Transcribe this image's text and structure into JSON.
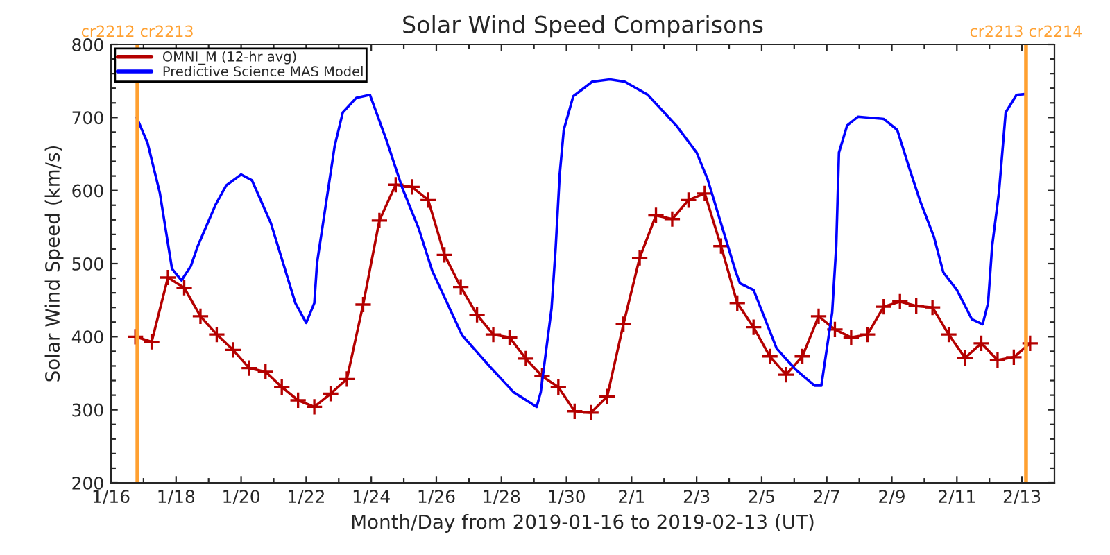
{
  "chart_data": {
    "type": "line",
    "title": "Solar Wind Speed Comparisons",
    "xlabel": "Month/Day from 2019-01-16 to 2019-02-13 (UT)",
    "ylabel": "Solar Wind Speed (km/s)",
    "xlim": [
      "2019-01-16",
      "2019-02-14"
    ],
    "xticks": [
      {
        "value": "2019-01-16",
        "label": "1/16"
      },
      {
        "value": "2019-01-17",
        "label": null
      },
      {
        "value": "2019-01-18",
        "label": "1/18"
      },
      {
        "value": "2019-01-19",
        "label": null
      },
      {
        "value": "2019-01-20",
        "label": "1/20"
      },
      {
        "value": "2019-01-21",
        "label": null
      },
      {
        "value": "2019-01-22",
        "label": "1/22"
      },
      {
        "value": "2019-01-23",
        "label": null
      },
      {
        "value": "2019-01-24",
        "label": "1/24"
      },
      {
        "value": "2019-01-25",
        "label": null
      },
      {
        "value": "2019-01-26",
        "label": "1/26"
      },
      {
        "value": "2019-01-27",
        "label": null
      },
      {
        "value": "2019-01-28",
        "label": "1/28"
      },
      {
        "value": "2019-01-29",
        "label": null
      },
      {
        "value": "2019-01-30",
        "label": "1/30"
      },
      {
        "value": "2019-01-31",
        "label": null
      },
      {
        "value": "2019-02-01",
        "label": "2/1"
      },
      {
        "value": "2019-02-02",
        "label": null
      },
      {
        "value": "2019-02-03",
        "label": "2/3"
      },
      {
        "value": "2019-02-04",
        "label": null
      },
      {
        "value": "2019-02-05",
        "label": "2/5"
      },
      {
        "value": "2019-02-06",
        "label": null
      },
      {
        "value": "2019-02-07",
        "label": "2/7"
      },
      {
        "value": "2019-02-08",
        "label": null
      },
      {
        "value": "2019-02-09",
        "label": "2/9"
      },
      {
        "value": "2019-02-10",
        "label": null
      },
      {
        "value": "2019-02-11",
        "label": "2/11"
      },
      {
        "value": "2019-02-12",
        "label": null
      },
      {
        "value": "2019-02-13",
        "label": "2/13"
      }
    ],
    "ylim": [
      200,
      800
    ],
    "yticks": [
      200,
      {
        "value": 220,
        "label": null
      },
      {
        "value": 240,
        "label": null
      },
      {
        "value": 260,
        "label": null
      },
      {
        "value": 280,
        "label": null
      },
      300,
      {
        "value": 320,
        "label": null
      },
      {
        "value": 340,
        "label": null
      },
      {
        "value": 360,
        "label": null
      },
      {
        "value": 380,
        "label": null
      },
      400,
      {
        "value": 420,
        "label": null
      },
      {
        "value": 440,
        "label": null
      },
      {
        "value": 460,
        "label": null
      },
      {
        "value": 480,
        "label": null
      },
      500,
      {
        "value": 520,
        "label": null
      },
      {
        "value": 540,
        "label": null
      },
      {
        "value": 560,
        "label": null
      },
      {
        "value": 580,
        "label": null
      },
      600,
      {
        "value": 620,
        "label": null
      },
      {
        "value": 640,
        "label": null
      },
      {
        "value": 660,
        "label": null
      },
      {
        "value": 680,
        "label": null
      },
      700,
      {
        "value": 720,
        "label": null
      },
      {
        "value": 740,
        "label": null
      },
      {
        "value": 760,
        "label": null
      },
      {
        "value": 780,
        "label": null
      },
      800
    ],
    "grid": false,
    "legend": "top left",
    "ref_lines": [
      {
        "axis": "x",
        "value": "2019-01-16T19:30",
        "label": "cr2212 cr2213",
        "color": "#ffa030"
      },
      {
        "axis": "x",
        "value": "2019-02-13T03:00",
        "label": "cr2213 cr2214",
        "color": "#ffa030"
      }
    ],
    "series": [
      {
        "name": "OMNI_M (12-hr avg)",
        "color": "#b40000",
        "marker": "cross",
        "x": [
          "2019-01-16T18:00",
          "2019-01-17T06:00",
          "2019-01-17T18:00",
          "2019-01-18T06:00",
          "2019-01-18T18:00",
          "2019-01-19T06:00",
          "2019-01-19T18:00",
          "2019-01-20T06:00",
          "2019-01-20T18:00",
          "2019-01-21T06:00",
          "2019-01-21T18:00",
          "2019-01-22T06:00",
          "2019-01-22T18:00",
          "2019-01-23T06:00",
          "2019-01-23T18:00",
          "2019-01-24T06:00",
          "2019-01-24T18:00",
          "2019-01-25T06:00",
          "2019-01-25T18:00",
          "2019-01-26T06:00",
          "2019-01-26T18:00",
          "2019-01-27T06:00",
          "2019-01-27T18:00",
          "2019-01-28T06:00",
          "2019-01-28T18:00",
          "2019-01-29T06:00",
          "2019-01-29T18:00",
          "2019-01-30T06:00",
          "2019-01-30T18:00",
          "2019-01-31T06:00",
          "2019-01-31T18:00",
          "2019-02-01T06:00",
          "2019-02-01T18:00",
          "2019-02-02T06:00",
          "2019-02-02T18:00",
          "2019-02-03T06:00",
          "2019-02-03T18:00",
          "2019-02-04T06:00",
          "2019-02-04T18:00",
          "2019-02-05T06:00",
          "2019-02-05T18:00",
          "2019-02-06T06:00",
          "2019-02-06T18:00",
          "2019-02-07T06:00",
          "2019-02-07T18:00",
          "2019-02-08T06:00",
          "2019-02-08T18:00",
          "2019-02-09T06:00",
          "2019-02-09T18:00",
          "2019-02-10T06:00",
          "2019-02-10T18:00",
          "2019-02-11T06:00",
          "2019-02-11T18:00",
          "2019-02-12T06:00",
          "2019-02-12T18:00",
          "2019-02-13T06:00"
        ],
        "values": [
          400,
          393,
          481,
          467,
          428,
          403,
          382,
          357,
          352,
          331,
          313,
          304,
          322,
          342,
          444,
          559,
          608,
          605,
          587,
          512,
          468,
          430,
          403,
          399,
          370,
          346,
          331,
          298,
          296,
          318,
          417,
          508,
          566,
          561,
          587,
          596,
          524,
          446,
          413,
          373,
          348,
          373,
          428,
          410,
          399,
          403,
          441,
          448,
          442,
          440,
          403,
          371,
          391,
          368,
          372,
          391
        ]
      },
      {
        "name": "Predictive Science MAS Model",
        "color": "#0000ff",
        "marker": "none",
        "x": [
          "2019-01-16T19:00",
          "2019-01-17T03:00",
          "2019-01-17T12:00",
          "2019-01-17T21:00",
          "2019-01-18T04:00",
          "2019-01-18T11:00",
          "2019-01-18T16:00",
          "2019-01-19T05:00",
          "2019-01-19T13:00",
          "2019-01-20T00:00",
          "2019-01-20T08:00",
          "2019-01-20T22:00",
          "2019-01-21T16:00",
          "2019-01-22T00:00",
          "2019-01-22T06:00",
          "2019-01-22T08:00",
          "2019-01-22T21:00",
          "2019-01-23T03:00",
          "2019-01-23T13:00",
          "2019-01-23T23:00",
          "2019-01-24T11:00",
          "2019-01-24T23:00",
          "2019-01-25T11:00",
          "2019-01-25T21:00",
          "2019-01-26T19:00",
          "2019-01-27T15:00",
          "2019-01-28T09:00",
          "2019-01-29T02:00",
          "2019-01-29T05:00",
          "2019-01-29T13:00",
          "2019-01-29T16:00",
          "2019-01-29T19:00",
          "2019-01-29T22:00",
          "2019-01-30T05:00",
          "2019-01-30T19:00",
          "2019-01-31T08:00",
          "2019-01-31T19:00",
          "2019-02-01T12:00",
          "2019-02-02T09:00",
          "2019-02-03T00:00",
          "2019-02-03T08:00",
          "2019-02-04T05:00",
          "2019-02-04T08:00",
          "2019-02-04T18:00",
          "2019-02-05T11:00",
          "2019-02-06T01:00",
          "2019-02-06T15:00",
          "2019-02-06T20:00",
          "2019-02-07T04:00",
          "2019-02-07T07:00",
          "2019-02-07T09:00",
          "2019-02-07T15:00",
          "2019-02-07T23:00",
          "2019-02-08T18:00",
          "2019-02-09T04:00",
          "2019-02-09T13:00",
          "2019-02-09T21:00",
          "2019-02-10T07:00",
          "2019-02-10T14:00",
          "2019-02-11T00:00",
          "2019-02-11T11:00",
          "2019-02-11T19:00",
          "2019-02-11T23:00",
          "2019-02-12T02:00",
          "2019-02-12T07:00",
          "2019-02-12T12:00",
          "2019-02-12T20:00",
          "2019-02-13T02:00"
        ],
        "values": [
          700,
          665,
          597,
          493,
          477,
          497,
          524,
          580,
          607,
          622,
          614,
          555,
          446,
          419,
          446,
          501,
          661,
          707,
          727,
          731,
          670,
          603,
          548,
          490,
          402,
          360,
          324,
          304,
          324,
          439,
          521,
          622,
          683,
          729,
          749,
          752,
          749,
          731,
          689,
          652,
          616,
          488,
          473,
          464,
          384,
          355,
          333,
          333,
          433,
          524,
          652,
          689,
          701,
          698,
          683,
          630,
          585,
          537,
          488,
          464,
          424,
          417,
          446,
          524,
          597,
          707,
          731,
          732
        ]
      }
    ]
  }
}
